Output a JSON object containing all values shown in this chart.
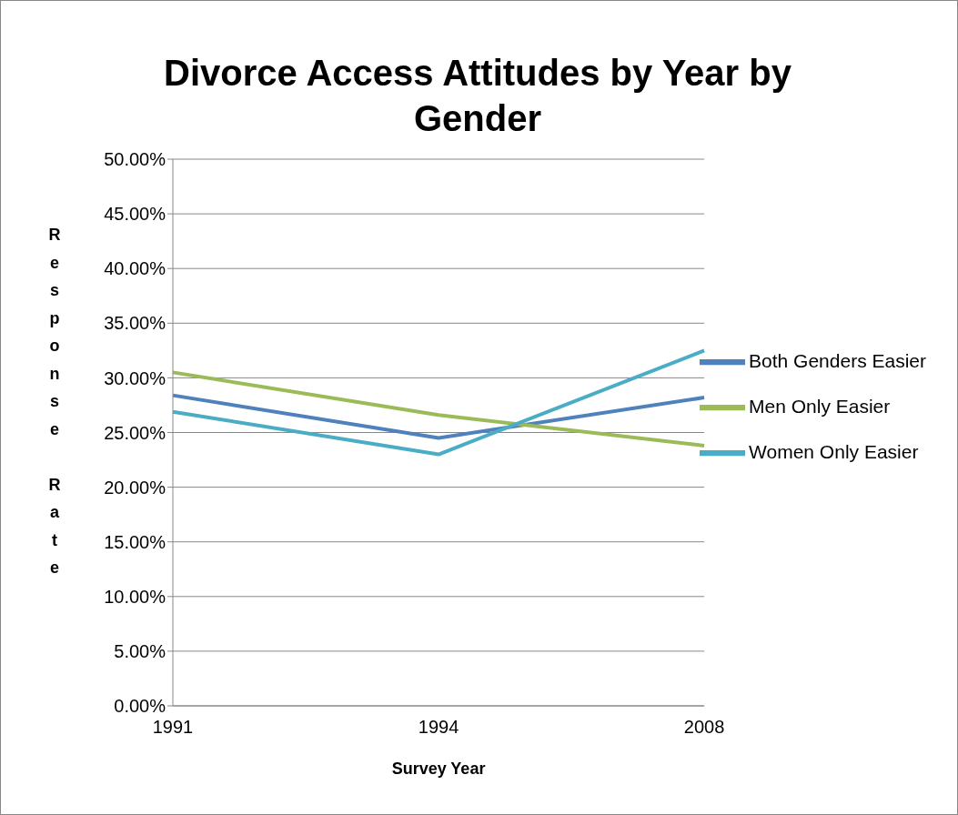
{
  "chart_data": {
    "type": "line",
    "title": "Divorce Access Attitudes by Year by Gender",
    "xlabel": "Survey Year",
    "ylabel": "Response Rate",
    "categories": [
      "1991",
      "1994",
      "2008"
    ],
    "series": [
      {
        "name": "Both Genders Easier",
        "color": "#4f81bd",
        "values": [
          28.4,
          24.5,
          28.2
        ]
      },
      {
        "name": "Men Only Easier",
        "color": "#9bbb59",
        "values": [
          30.5,
          26.6,
          23.8
        ]
      },
      {
        "name": "Women Only Easier",
        "color": "#4bacc6",
        "values": [
          26.9,
          23.0,
          32.5
        ]
      }
    ],
    "ylim": [
      0,
      50
    ],
    "yticks": [
      {
        "value": 0,
        "label": "0.00%"
      },
      {
        "value": 5,
        "label": "5.00%"
      },
      {
        "value": 10,
        "label": "10.00%"
      },
      {
        "value": 15,
        "label": "15.00%"
      },
      {
        "value": 20,
        "label": "20.00%"
      },
      {
        "value": 25,
        "label": "25.00%"
      },
      {
        "value": 30,
        "label": "30.00%"
      },
      {
        "value": 35,
        "label": "35.00%"
      },
      {
        "value": 40,
        "label": "40.00%"
      },
      {
        "value": 45,
        "label": "45.00%"
      },
      {
        "value": 50,
        "label": "50.00%"
      }
    ],
    "grid": "y",
    "legend": "right"
  }
}
